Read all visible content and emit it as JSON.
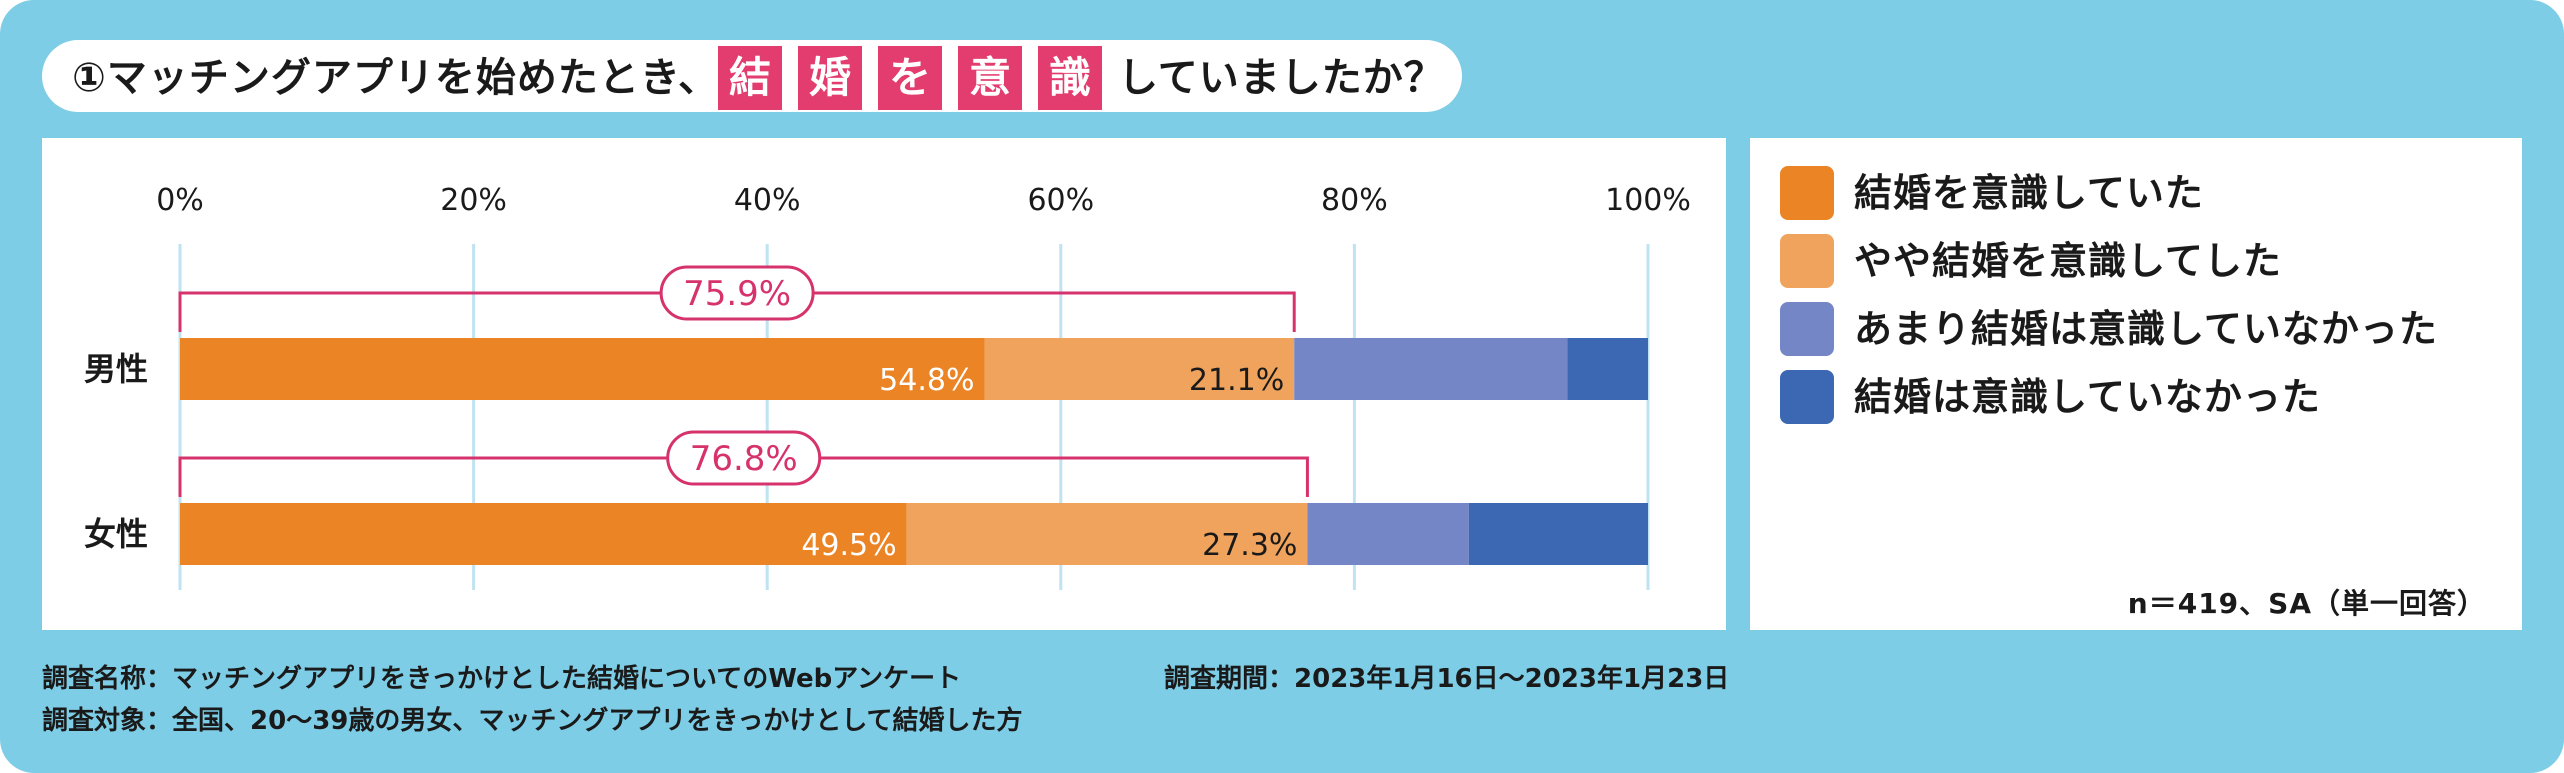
{
  "title": {
    "lead": "①マッチングアプリを始めたとき、",
    "highlight_chars": [
      "結",
      "婚",
      "を",
      "意",
      "識"
    ],
    "tail": "していましたか？"
  },
  "chart_data": {
    "type": "bar",
    "orientation": "horizontal",
    "stacked": true,
    "xlim": [
      0,
      100
    ],
    "x_ticks": [
      "0%",
      "20%",
      "40%",
      "60%",
      "80%",
      "100%"
    ],
    "categories": [
      "男性",
      "女性"
    ],
    "series": [
      {
        "name": "結婚を意識していた",
        "color": "#ea8425",
        "values": [
          54.8,
          49.5
        ],
        "labels": [
          "54.8%",
          "49.5%"
        ]
      },
      {
        "name": "やや結婚を意識してした",
        "color": "#f0a35c",
        "values": [
          21.1,
          27.3
        ],
        "labels": [
          "21.1%",
          "27.3%"
        ]
      },
      {
        "name": "あまり結婚は意識していなかった",
        "color": "#7486c6",
        "values": [
          18.6,
          11.0
        ],
        "labels": [
          "",
          ""
        ]
      },
      {
        "name": "結婚は意識していなかった",
        "color": "#3c67b3",
        "values": [
          5.5,
          12.2
        ],
        "labels": [
          "",
          ""
        ]
      }
    ],
    "brackets": [
      {
        "category": "男性",
        "value": 75.9,
        "label": "75.9%"
      },
      {
        "category": "女性",
        "value": 76.8,
        "label": "76.8%"
      }
    ],
    "bracket_color": "#d6336c",
    "grid": true,
    "note": "n＝419、SA（単一回答）"
  },
  "footer": {
    "survey_name_label": "調査名称：",
    "survey_name": "マッチングアプリをきっかけとした結婚についてのWebアンケート",
    "period_label": "調査期間：",
    "period": "2023年1月16日〜2023年1月23日",
    "target_label": "調査対象：",
    "target": "全国、20〜39歳の男女、マッチングアプリをきっかけとして結婚した方"
  }
}
